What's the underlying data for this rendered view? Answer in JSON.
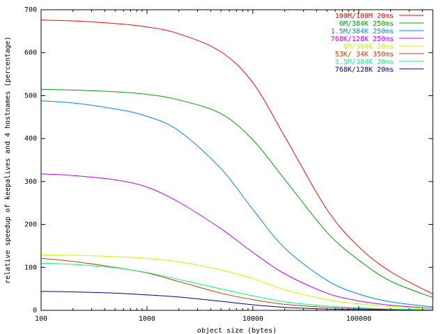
{
  "chart_data": {
    "type": "line",
    "title": "",
    "xlabel": "object size (bytes)",
    "ylabel": "relative speedup of keepalives and 4 hostnames (percentage)",
    "xscale": "log",
    "xlim": [
      100,
      500000
    ],
    "ylim": [
      0,
      700
    ],
    "xticks": [
      100,
      1000,
      10000,
      100000
    ],
    "xtick_labels": [
      "100",
      "1000",
      "10000",
      "100000"
    ],
    "yticks": [
      0,
      100,
      200,
      300,
      400,
      500,
      600,
      700
    ],
    "ytick_labels": [
      "0",
      "100",
      "200",
      "300",
      "400",
      "500",
      "600",
      "700"
    ],
    "grid": false,
    "legend_position": "top-right",
    "x": [
      100,
      200,
      500,
      1000,
      2000,
      5000,
      10000,
      20000,
      50000,
      100000,
      200000,
      500000
    ],
    "series": [
      {
        "name": "100M/100M  20ms",
        "color": "#ff0000",
        "values": [
          676,
          674,
          668,
          660,
          644,
          602,
          530,
          405,
          235,
          148,
          90,
          38
        ]
      },
      {
        "name": "6M/384K 250ms",
        "color": "#00a000",
        "values": [
          515,
          513,
          509,
          503,
          490,
          458,
          397,
          305,
          182,
          117,
          68,
          30
        ]
      },
      {
        "name": "1.5M/384K 250ms",
        "color": "#0080ff",
        "values": [
          488,
          483,
          469,
          452,
          418,
          330,
          235,
          145,
          70,
          38,
          20,
          8
        ]
      },
      {
        "name": "768K/128K 250ms",
        "color": "#c000ff",
        "values": [
          318,
          314,
          304,
          287,
          252,
          190,
          135,
          85,
          40,
          22,
          12,
          5
        ]
      },
      {
        "name": "6M/384K  20ms",
        "color": "#c0ff00",
        "values": [
          129,
          128,
          125,
          121,
          113,
          94,
          74,
          48,
          25,
          15,
          9,
          4
        ]
      },
      {
        "name": "53K/ 34K 350ms",
        "color": "#c04000",
        "values": [
          121,
          114,
          100,
          87,
          67,
          40,
          25,
          14,
          7,
          4,
          2,
          1
        ]
      },
      {
        "name": "1.5M/384K  20ms",
        "color": "#00ff80",
        "values": [
          110,
          107,
          99,
          88,
          72,
          50,
          34,
          20,
          10,
          6,
          3,
          1
        ]
      },
      {
        "name": "768K/128K  20ms",
        "color": "#000080",
        "values": [
          44,
          43,
          40,
          36,
          31,
          21,
          13,
          7,
          3,
          2,
          1,
          0
        ]
      }
    ]
  }
}
